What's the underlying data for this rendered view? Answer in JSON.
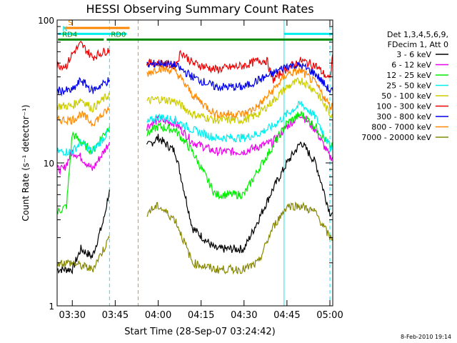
{
  "chart_data": {
    "type": "line",
    "title": "HESSI Observing Summary Count Rates",
    "xlabel": "Start Time (28-Sep-07 03:24:42)",
    "ylabel": "Count Rate (s⁻¹ detector⁻¹)",
    "y_scale": "log",
    "ylim": [
      1,
      100
    ],
    "x_range_minutes": [
      "03:24:42",
      "05:01:00"
    ],
    "x_ticks": [
      "03:30",
      "03:45",
      "04:00",
      "04:15",
      "04:30",
      "04:45",
      "05:00"
    ],
    "y_ticks": [
      "1",
      "10",
      "100"
    ],
    "date_stamp": "8-Feb-2010 19:14",
    "legend": {
      "placement": "right",
      "header": [
        "Det 1,3,4,5,6,9,",
        "FDecim 1, Att 0"
      ],
      "entries": [
        {
          "label": "3 - 6 keV",
          "color": "#000000"
        },
        {
          "label": "6 - 12 keV",
          "color": "#ee00ee"
        },
        {
          "label": "12 - 25 keV",
          "color": "#00ee00"
        },
        {
          "label": "25 - 50 keV",
          "color": "#00eeee"
        },
        {
          "label": "50 - 100 keV",
          "color": "#cccc00"
        },
        {
          "label": "100 - 300 keV",
          "color": "#ee0000"
        },
        {
          "label": "300 - 800 keV",
          "color": "#0000ee"
        },
        {
          "label": "800 - 7000 keV",
          "color": "#ff8800"
        },
        {
          "label": "7000 - 20000 keV",
          "color": "#888800"
        }
      ]
    },
    "annotations": [
      {
        "label": "S",
        "color": "#ff8800",
        "start": "03:27",
        "end": "03:50",
        "y": 88
      },
      {
        "label": "N",
        "color": "#00eeee",
        "start": "03:25",
        "end": "03:49",
        "y": 80
      },
      {
        "label": "RD4",
        "color": "#008800",
        "start": "03:25",
        "end": "03:41",
        "y": 73
      },
      {
        "label": "RD0",
        "color": "#008800",
        "start": "03:42",
        "end": "05:01",
        "y": 73
      },
      {
        "label": "",
        "color": "#00eeee",
        "start": "04:44",
        "end": "05:01",
        "y": 80
      }
    ],
    "vertical_markers": [
      {
        "time": "03:24:42",
        "color": "#00eeee",
        "style": "solid"
      },
      {
        "time": "03:43",
        "color": "#00eeee",
        "style": "dashed"
      },
      {
        "time": "03:53",
        "color": "#ff8800",
        "style": "dashed"
      },
      {
        "time": "04:44",
        "color": "#00eeee",
        "style": "solid"
      },
      {
        "time": "05:00",
        "color": "#00eeee",
        "style": "dashed"
      }
    ],
    "data_gap": [
      "03:43",
      "03:53"
    ],
    "series": [
      {
        "name": "3 - 6 keV",
        "t": [
          "03:24:42",
          "03:30",
          "03:33",
          "03:37",
          "03:41",
          "03:43",
          "03:53",
          "03:56",
          "04:00",
          "04:06",
          "04:12",
          "04:20",
          "04:30",
          "04:35",
          "04:40",
          "04:45",
          "04:50",
          "04:55",
          "05:00",
          "05:01"
        ],
        "values": [
          1.8,
          1.8,
          2.5,
          2.2,
          4.0,
          6.5,
          null,
          13,
          15,
          12,
          3.5,
          2.5,
          2.5,
          4.0,
          6.5,
          10,
          14,
          10,
          4.5,
          4.5
        ]
      },
      {
        "name": "6 - 12 keV",
        "t": [
          "03:24:42",
          "03:27",
          "03:30",
          "03:33",
          "03:37",
          "03:41",
          "03:43",
          "03:53",
          "03:56",
          "04:00",
          "04:06",
          "04:12",
          "04:20",
          "04:30",
          "04:35",
          "04:40",
          "04:45",
          "04:50",
          "04:55",
          "05:00",
          "05:01"
        ],
        "values": [
          9,
          9,
          12,
          11,
          9,
          12,
          14,
          null,
          18,
          20,
          19,
          14,
          12,
          12,
          13,
          14,
          18,
          22,
          17,
          11,
          11
        ]
      },
      {
        "name": "12 - 25 keV",
        "t": [
          "03:24:42",
          "03:28",
          "03:30",
          "03:33",
          "03:37",
          "03:41",
          "03:43",
          "03:53",
          "03:56",
          "04:00",
          "04:06",
          "04:12",
          "04:20",
          "04:30",
          "04:35",
          "04:40",
          "04:45",
          "04:50",
          "04:55",
          "05:00",
          "05:01"
        ],
        "values": [
          4.5,
          5.0,
          16,
          14,
          12,
          16,
          18,
          null,
          16,
          18,
          17,
          12,
          6,
          6,
          9,
          13,
          19,
          22,
          18,
          13,
          13
        ]
      },
      {
        "name": "25 - 50 keV",
        "t": [
          "03:24:42",
          "03:30",
          "03:33",
          "03:37",
          "03:41",
          "03:43",
          "03:53",
          "03:56",
          "04:00",
          "04:06",
          "04:12",
          "04:20",
          "04:30",
          "04:35",
          "04:40",
          "04:45",
          "04:50",
          "04:55",
          "05:00",
          "05:01"
        ],
        "values": [
          12,
          12,
          14,
          12,
          15,
          17,
          null,
          19,
          21,
          20,
          17,
          15,
          15,
          16,
          18,
          22,
          26,
          21,
          13,
          13
        ]
      },
      {
        "name": "50 - 100 keV",
        "t": [
          "03:24:42",
          "03:30",
          "03:33",
          "03:37",
          "03:41",
          "03:43",
          "03:53",
          "03:56",
          "04:00",
          "04:06",
          "04:12",
          "04:20",
          "04:30",
          "04:35",
          "04:40",
          "04:45",
          "04:50",
          "04:55",
          "05:00",
          "05:01"
        ],
        "values": [
          25,
          25,
          28,
          24,
          28,
          30,
          null,
          27,
          28,
          27,
          22,
          20,
          20,
          22,
          27,
          34,
          38,
          32,
          22,
          22
        ]
      },
      {
        "name": "100 - 300 keV",
        "t": [
          "03:24:42",
          "03:28",
          "03:30",
          "03:33",
          "03:37",
          "03:41",
          "03:43",
          "03:53",
          "03:56",
          "04:00",
          "04:06",
          "04:08",
          "04:12",
          "04:20",
          "04:30",
          "04:35",
          "04:38",
          "04:40",
          "04:45",
          "04:50",
          "04:55",
          "05:00",
          "05:01"
        ],
        "values": [
          48,
          48,
          58,
          68,
          55,
          60,
          62,
          null,
          50,
          50,
          48,
          60,
          50,
          45,
          48,
          52,
          52,
          38,
          46,
          52,
          48,
          38,
          58
        ]
      },
      {
        "name": "300 - 800 keV",
        "t": [
          "03:24:42",
          "03:30",
          "03:33",
          "03:37",
          "03:41",
          "03:43",
          "03:53",
          "03:56",
          "04:00",
          "04:06",
          "04:12",
          "04:20",
          "04:30",
          "04:35",
          "04:40",
          "04:45",
          "04:50",
          "04:55",
          "05:00",
          "05:01"
        ],
        "values": [
          32,
          32,
          38,
          32,
          36,
          38,
          null,
          48,
          50,
          48,
          40,
          34,
          34,
          38,
          42,
          48,
          48,
          42,
          32,
          32
        ]
      },
      {
        "name": "800 - 7000 keV",
        "t": [
          "03:24:42",
          "03:30",
          "03:33",
          "03:37",
          "03:41",
          "03:43",
          "03:53",
          "03:56",
          "04:00",
          "04:06",
          "04:12",
          "04:20",
          "04:30",
          "04:35",
          "04:40",
          "04:45",
          "04:50",
          "04:55",
          "05:00",
          "05:01"
        ],
        "values": [
          20,
          20,
          22,
          19,
          22,
          24,
          null,
          42,
          46,
          44,
          30,
          22,
          22,
          25,
          32,
          42,
          44,
          36,
          25,
          25
        ]
      },
      {
        "name": "7000 - 20000 keV",
        "t": [
          "03:24:42",
          "03:30",
          "03:37",
          "03:41",
          "03:43",
          "03:53",
          "03:56",
          "04:00",
          "04:06",
          "04:12",
          "04:20",
          "04:30",
          "04:35",
          "04:40",
          "04:45",
          "04:50",
          "04:55",
          "05:00",
          "05:01"
        ],
        "values": [
          2.0,
          2.0,
          1.8,
          2.5,
          3.0,
          null,
          4.5,
          5.0,
          4.0,
          2.0,
          1.8,
          1.8,
          2.0,
          3.5,
          5.0,
          5.0,
          4.5,
          3.0,
          3.0
        ]
      }
    ]
  }
}
